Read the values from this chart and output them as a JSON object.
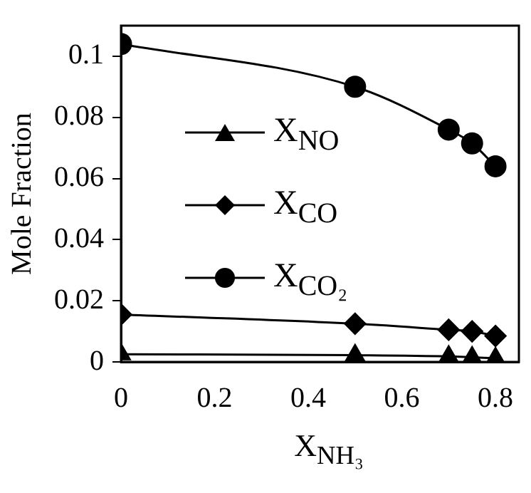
{
  "chart_data": {
    "type": "line",
    "xlabel": "X$_{NH₃}$",
    "ylabel": "Mole Fraction",
    "x": [
      0,
      0.5,
      0.7,
      0.75,
      0.8
    ],
    "series": [
      {
        "name": "X$_{NO}$",
        "color": "#000000",
        "marker": "triangle",
        "values": [
          0.0025,
          0.0022,
          0.0018,
          0.0015,
          0.0012
        ]
      },
      {
        "name": "X$_{CO}$",
        "color": "#000000",
        "marker": "diamond",
        "values": [
          0.0155,
          0.0125,
          0.0105,
          0.01,
          0.0085
        ]
      },
      {
        "name": "X$_{CO₂}$",
        "color": "#000000",
        "marker": "circle",
        "values": [
          0.104,
          0.09,
          0.076,
          0.0715,
          0.064
        ]
      }
    ],
    "xlim": [
      0,
      0.85
    ],
    "xticks": [
      0,
      0.2,
      0.4,
      0.6,
      0.8
    ],
    "ylim": [
      0,
      0.11
    ],
    "yticks": [
      0,
      0.02,
      0.04,
      0.06,
      0.08,
      0.1
    ],
    "grid": false,
    "legend": "left"
  }
}
